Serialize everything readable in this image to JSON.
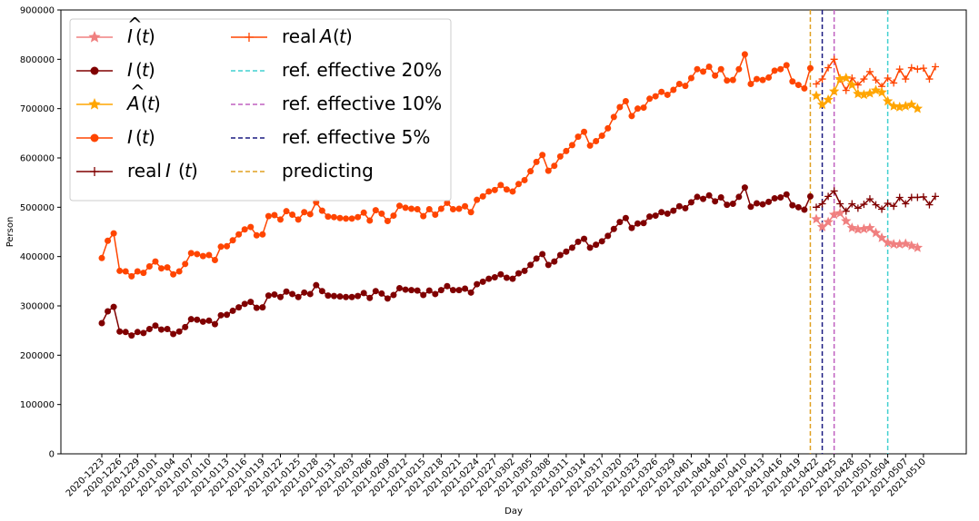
{
  "chart_data": {
    "type": "line",
    "xlabel": "Day",
    "ylabel": "Person",
    "ylim": [
      0,
      900000
    ],
    "yticks": [
      0,
      100000,
      200000,
      300000,
      400000,
      500000,
      600000,
      700000,
      800000,
      900000
    ],
    "start_date": "2020-12-23",
    "xtick_labels": [
      "2020-1223",
      "2020-1226",
      "2020-1229",
      "2021-0101",
      "2021-0104",
      "2021-0107",
      "2021-0110",
      "2021-0113",
      "2021-0116",
      "2021-0119",
      "2021-0122",
      "2021-0125",
      "2021-0128",
      "2021-0131",
      "2021-0203",
      "2021-0206",
      "2021-0209",
      "2021-0212",
      "2021-0215",
      "2021-0218",
      "2021-0221",
      "2021-0224",
      "2021-0227",
      "2021-0302",
      "2021-0305",
      "2021-0308",
      "2021-0311",
      "2021-0314",
      "2021-0317",
      "2021-0320",
      "2021-0323",
      "2021-0326",
      "2021-0329",
      "2021-0401",
      "2021-0404",
      "2021-0407",
      "2021-0410",
      "2021-0413",
      "2021-0416",
      "2021-0419",
      "2021-0422",
      "2021-0425",
      "2021-0428",
      "2021-0501",
      "2021-0504",
      "2021-0507",
      "2021-0510"
    ],
    "legend_position": "upper-left",
    "series": [
      {
        "name": "Î(t)",
        "label_main": "I",
        "hat": true,
        "color": "#f08080",
        "marker": "star",
        "start_index": 120,
        "values": [
          476000,
          460000,
          470000,
          485000,
          488000,
          472000,
          458000,
          455000,
          456000,
          458000,
          448000,
          438000,
          428000,
          425000,
          425000,
          426000,
          422000,
          418000
        ]
      },
      {
        "name": "I(t)",
        "label_main": "I",
        "hat": false,
        "color": "#800000",
        "marker": "circle",
        "start_index": 0,
        "values": [
          265000,
          289000,
          298000,
          248000,
          247000,
          240000,
          247000,
          245000,
          253000,
          260000,
          252000,
          253000,
          243000,
          248000,
          257000,
          273000,
          272000,
          268000,
          270000,
          263000,
          281000,
          282000,
          290000,
          297000,
          304000,
          308000,
          296000,
          297000,
          321000,
          323000,
          318000,
          329000,
          324000,
          318000,
          327000,
          324000,
          342000,
          330000,
          321000,
          320000,
          319000,
          318000,
          318000,
          320000,
          326000,
          316000,
          330000,
          325000,
          315000,
          322000,
          336000,
          333000,
          332000,
          331000,
          322000,
          331000,
          324000,
          332000,
          340000,
          332000,
          332000,
          335000,
          327000,
          344000,
          349000,
          355000,
          358000,
          364000,
          357000,
          355000,
          366000,
          371000,
          383000,
          396000,
          405000,
          383000,
          390000,
          403000,
          410000,
          418000,
          430000,
          436000,
          418000,
          424000,
          431000,
          442000,
          456000,
          470000,
          478000,
          458000,
          467000,
          468000,
          481000,
          483000,
          490000,
          487000,
          493000,
          502000,
          498000,
          510000,
          521000,
          517000,
          524000,
          512000,
          520000,
          505000,
          507000,
          521000,
          540000,
          501000,
          508000,
          506000,
          511000,
          518000,
          520000,
          526000,
          504000,
          500000,
          495000,
          522000
        ]
      },
      {
        "name": "Â(t)",
        "label_main": "A",
        "hat": true,
        "color": "#ffa500",
        "marker": "star",
        "start_index": 120,
        "values": [
          726000,
          708000,
          718000,
          735000,
          760000,
          762000,
          748000,
          730000,
          728000,
          731000,
          737000,
          733000,
          715000,
          705000,
          703000,
          705000,
          708000,
          700000
        ]
      },
      {
        "name": "I(t)",
        "label_main": "I",
        "hat": false,
        "color": "#ff4500",
        "marker": "circle",
        "start_index": 0,
        "values": [
          397000,
          432000,
          447000,
          371000,
          370000,
          360000,
          370000,
          367000,
          380000,
          390000,
          376000,
          378000,
          364000,
          370000,
          385000,
          407000,
          405000,
          401000,
          403000,
          393000,
          420000,
          421000,
          433000,
          445000,
          455000,
          460000,
          443000,
          445000,
          482000,
          484000,
          475000,
          492000,
          485000,
          475000,
          490000,
          486000,
          510000,
          493000,
          481000,
          480000,
          478000,
          477000,
          477000,
          480000,
          489000,
          473000,
          494000,
          487000,
          472000,
          483000,
          503000,
          499000,
          497000,
          496000,
          482000,
          496000,
          485000,
          497000,
          509000,
          496000,
          497000,
          502000,
          490000,
          515000,
          522000,
          532000,
          535000,
          545000,
          536000,
          532000,
          547000,
          555000,
          573000,
          592000,
          606000,
          574000,
          584000,
          603000,
          614000,
          626000,
          643000,
          653000,
          625000,
          634000,
          645000,
          660000,
          683000,
          703000,
          715000,
          685000,
          700000,
          702000,
          720000,
          725000,
          734000,
          728000,
          738000,
          750000,
          746000,
          762000,
          780000,
          775000,
          785000,
          767000,
          780000,
          757000,
          758000,
          780000,
          810000,
          750000,
          760000,
          758000,
          763000,
          777000,
          780000,
          788000,
          755000,
          748000,
          741000,
          782000
        ]
      },
      {
        "name": "real A(t)",
        "label_main": "A",
        "hat": false,
        "real": true,
        "color": "#ff4500",
        "marker": "plus",
        "start_index": 120,
        "values": [
          750000,
          760000,
          783000,
          800000,
          760000,
          737000,
          762000,
          748000,
          760000,
          775000,
          758000,
          745000,
          762000,
          752000,
          780000,
          760000,
          783000,
          780000,
          782000,
          760000,
          785000
        ]
      },
      {
        "name": "real I(t)",
        "label_main": "I",
        "hat": false,
        "real": true,
        "color": "#800000",
        "marker": "plus",
        "start_index": 120,
        "values": [
          500000,
          507000,
          522000,
          533000,
          507000,
          492000,
          507000,
          498000,
          506000,
          517000,
          505000,
          496000,
          508000,
          502000,
          520000,
          507000,
          520000,
          520000,
          521000,
          505000,
          522000
        ]
      }
    ],
    "vlines": [
      {
        "label": "ref. effective 20%",
        "color": "#40d0d0",
        "x_index": 132
      },
      {
        "label": "ref. effective 10%",
        "color": "#c060c0",
        "x_index": 123
      },
      {
        "label": "ref. effective 5%",
        "color": "#1a1a80",
        "x_index": 121
      },
      {
        "label": "predicting",
        "color": "#e0a020",
        "x_index": 119
      }
    ]
  }
}
